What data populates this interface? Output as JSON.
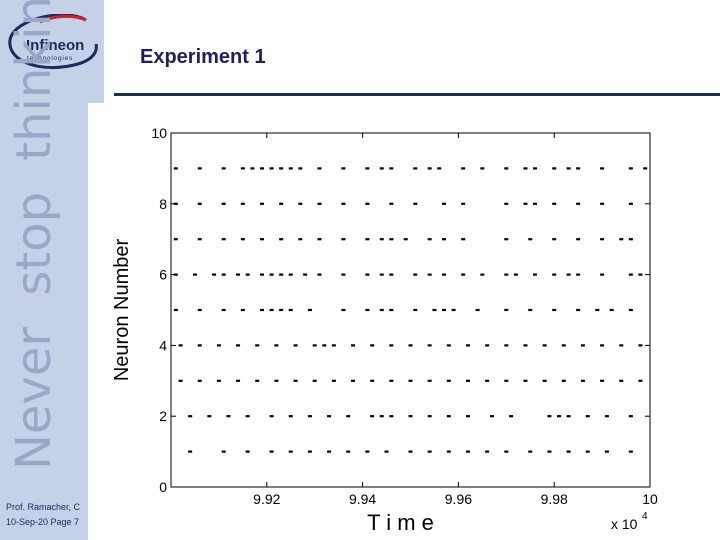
{
  "brand": {
    "logo_text": "Infineon",
    "logo_subtext": "technologies",
    "tagline_words": [
      "Never",
      "stop",
      "thinking"
    ],
    "color": "#1c2a5c"
  },
  "slide": {
    "title": "Experiment 1",
    "footer_line1": "Prof. Ramacher, C",
    "footer_line2": "10-Sep-20 Page 7"
  },
  "chart_data": {
    "type": "scatter",
    "title": "",
    "xlabel": "T i m e",
    "ylabel": "Neuron Number",
    "x_multiplier": "x 10",
    "x_multiplier_exp": "4",
    "xlim": [
      99.0,
      100.0
    ],
    "ylim": [
      0,
      10
    ],
    "xticks": [
      99.2,
      99.4,
      99.6,
      99.8,
      100
    ],
    "xtick_labels": [
      "9.92",
      "9.94",
      "9.96",
      "9.98",
      "10"
    ],
    "yticks": [
      0,
      2,
      4,
      6,
      8,
      10
    ],
    "ytick_labels": [
      "0",
      "2",
      "4",
      "6",
      "8",
      "10"
    ],
    "grid": false,
    "marker": "short-dash",
    "color": "#000000",
    "series": [
      {
        "y": 1,
        "x": [
          99.04,
          99.11,
          99.16,
          99.21,
          99.25,
          99.29,
          99.33,
          99.37,
          99.41,
          99.45,
          99.5,
          99.54,
          99.58,
          99.62,
          99.66,
          99.7,
          99.75,
          99.79,
          99.83,
          99.87,
          99.91,
          99.96
        ]
      },
      {
        "y": 2,
        "x": [
          99.04,
          99.08,
          99.12,
          99.16,
          99.21,
          99.25,
          99.29,
          99.33,
          99.37,
          99.42,
          99.44,
          99.46,
          99.5,
          99.54,
          99.58,
          99.62,
          99.67,
          99.71,
          99.79,
          99.81,
          99.83,
          99.87,
          99.91,
          99.96
        ]
      },
      {
        "y": 3,
        "x": [
          99.02,
          99.06,
          99.1,
          99.14,
          99.18,
          99.22,
          99.26,
          99.3,
          99.34,
          99.38,
          99.42,
          99.46,
          99.5,
          99.54,
          99.58,
          99.62,
          99.66,
          99.7,
          99.74,
          99.78,
          99.82,
          99.86,
          99.9,
          99.94,
          99.98
        ]
      },
      {
        "y": 4,
        "x": [
          99.02,
          99.06,
          99.1,
          99.14,
          99.18,
          99.22,
          99.26,
          99.3,
          99.32,
          99.34,
          99.38,
          99.42,
          99.46,
          99.5,
          99.54,
          99.58,
          99.62,
          99.66,
          99.7,
          99.74,
          99.78,
          99.82,
          99.86,
          99.9,
          99.94,
          99.98
        ]
      },
      {
        "y": 5,
        "x": [
          99.01,
          99.06,
          99.11,
          99.15,
          99.19,
          99.21,
          99.23,
          99.25,
          99.29,
          99.36,
          99.41,
          99.44,
          99.46,
          99.51,
          99.55,
          99.57,
          99.59,
          99.64,
          99.7,
          99.75,
          99.8,
          99.85,
          99.89,
          99.92,
          99.96
        ]
      },
      {
        "y": 6,
        "x": [
          99.01,
          99.05,
          99.09,
          99.11,
          99.14,
          99.16,
          99.19,
          99.21,
          99.23,
          99.25,
          99.28,
          99.31,
          99.36,
          99.41,
          99.44,
          99.46,
          99.51,
          99.54,
          99.57,
          99.61,
          99.65,
          99.7,
          99.72,
          99.76,
          99.8,
          99.83,
          99.85,
          99.9,
          99.96,
          99.98
        ]
      },
      {
        "y": 7,
        "x": [
          99.01,
          99.06,
          99.11,
          99.15,
          99.19,
          99.23,
          99.27,
          99.31,
          99.36,
          99.41,
          99.44,
          99.46,
          99.49,
          99.54,
          99.57,
          99.61,
          99.7,
          99.75,
          99.8,
          99.85,
          99.9,
          99.94,
          99.96
        ]
      },
      {
        "y": 8,
        "x": [
          99.01,
          99.06,
          99.11,
          99.15,
          99.19,
          99.23,
          99.27,
          99.31,
          99.36,
          99.41,
          99.46,
          99.51,
          99.57,
          99.61,
          99.7,
          99.74,
          99.76,
          99.8,
          99.85,
          99.9,
          99.96
        ]
      },
      {
        "y": 9,
        "x": [
          99.01,
          99.06,
          99.11,
          99.15,
          99.17,
          99.19,
          99.21,
          99.23,
          99.25,
          99.27,
          99.31,
          99.36,
          99.41,
          99.44,
          99.46,
          99.51,
          99.54,
          99.56,
          99.61,
          99.65,
          99.7,
          99.74,
          99.76,
          99.8,
          99.83,
          99.85,
          99.9,
          99.96,
          99.99
        ]
      }
    ]
  }
}
